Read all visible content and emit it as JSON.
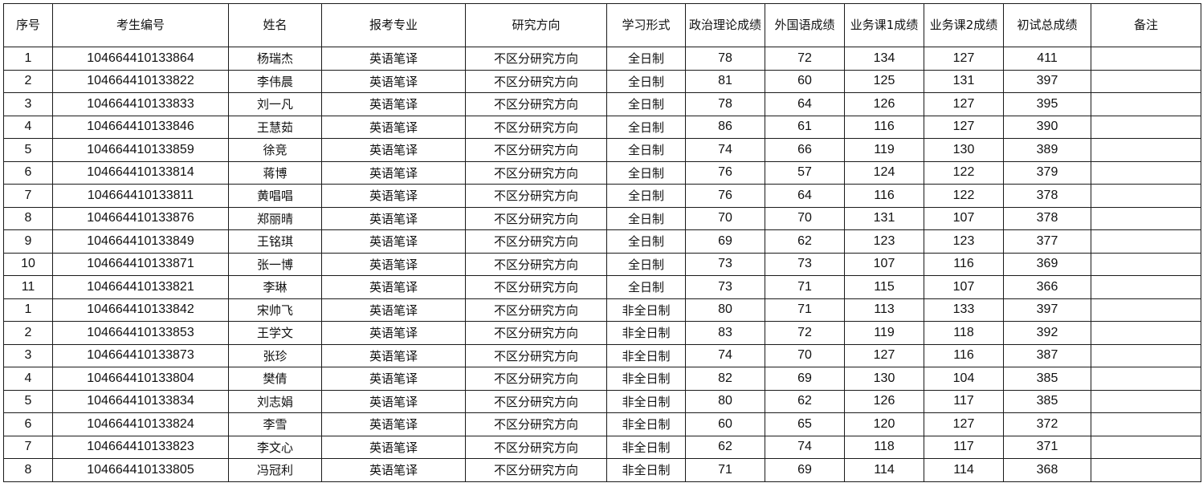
{
  "table": {
    "headers": [
      "序号",
      "考生编号",
      "姓名",
      "报考专业",
      "研究方向",
      "学习形式",
      "政治理论成绩",
      "外国语成绩",
      "业务课1成绩",
      "业务课2成绩",
      "初试总成绩",
      "备注"
    ],
    "rows": [
      [
        "1",
        "104664410133864",
        "杨瑞杰",
        "英语笔译",
        "不区分研究方向",
        "全日制",
        "78",
        "72",
        "134",
        "127",
        "411",
        ""
      ],
      [
        "2",
        "104664410133822",
        "李伟晨",
        "英语笔译",
        "不区分研究方向",
        "全日制",
        "81",
        "60",
        "125",
        "131",
        "397",
        ""
      ],
      [
        "3",
        "104664410133833",
        "刘一凡",
        "英语笔译",
        "不区分研究方向",
        "全日制",
        "78",
        "64",
        "126",
        "127",
        "395",
        ""
      ],
      [
        "4",
        "104664410133846",
        "王慧茹",
        "英语笔译",
        "不区分研究方向",
        "全日制",
        "86",
        "61",
        "116",
        "127",
        "390",
        ""
      ],
      [
        "5",
        "104664410133859",
        "徐竞",
        "英语笔译",
        "不区分研究方向",
        "全日制",
        "74",
        "66",
        "119",
        "130",
        "389",
        ""
      ],
      [
        "6",
        "104664410133814",
        "蒋博",
        "英语笔译",
        "不区分研究方向",
        "全日制",
        "76",
        "57",
        "124",
        "122",
        "379",
        ""
      ],
      [
        "7",
        "104664410133811",
        "黄唱唱",
        "英语笔译",
        "不区分研究方向",
        "全日制",
        "76",
        "64",
        "116",
        "122",
        "378",
        ""
      ],
      [
        "8",
        "104664410133876",
        "郑丽晴",
        "英语笔译",
        "不区分研究方向",
        "全日制",
        "70",
        "70",
        "131",
        "107",
        "378",
        ""
      ],
      [
        "9",
        "104664410133849",
        "王铭琪",
        "英语笔译",
        "不区分研究方向",
        "全日制",
        "69",
        "62",
        "123",
        "123",
        "377",
        ""
      ],
      [
        "10",
        "104664410133871",
        "张一博",
        "英语笔译",
        "不区分研究方向",
        "全日制",
        "73",
        "73",
        "107",
        "116",
        "369",
        ""
      ],
      [
        "11",
        "104664410133821",
        "李琳",
        "英语笔译",
        "不区分研究方向",
        "全日制",
        "73",
        "71",
        "115",
        "107",
        "366",
        ""
      ],
      [
        "1",
        "104664410133842",
        "宋帅飞",
        "英语笔译",
        "不区分研究方向",
        "非全日制",
        "80",
        "71",
        "113",
        "133",
        "397",
        ""
      ],
      [
        "2",
        "104664410133853",
        "王学文",
        "英语笔译",
        "不区分研究方向",
        "非全日制",
        "83",
        "72",
        "119",
        "118",
        "392",
        ""
      ],
      [
        "3",
        "104664410133873",
        "张珍",
        "英语笔译",
        "不区分研究方向",
        "非全日制",
        "74",
        "70",
        "127",
        "116",
        "387",
        ""
      ],
      [
        "4",
        "104664410133804",
        "樊倩",
        "英语笔译",
        "不区分研究方向",
        "非全日制",
        "82",
        "69",
        "130",
        "104",
        "385",
        ""
      ],
      [
        "5",
        "104664410133834",
        "刘志娟",
        "英语笔译",
        "不区分研究方向",
        "非全日制",
        "80",
        "62",
        "126",
        "117",
        "385",
        ""
      ],
      [
        "6",
        "104664410133824",
        "李雪",
        "英语笔译",
        "不区分研究方向",
        "非全日制",
        "60",
        "65",
        "120",
        "127",
        "372",
        ""
      ],
      [
        "7",
        "104664410133823",
        "李文心",
        "英语笔译",
        "不区分研究方向",
        "非全日制",
        "62",
        "74",
        "118",
        "117",
        "371",
        ""
      ],
      [
        "8",
        "104664410133805",
        "冯冠利",
        "英语笔译",
        "不区分研究方向",
        "非全日制",
        "71",
        "69",
        "114",
        "114",
        "368",
        ""
      ]
    ]
  }
}
